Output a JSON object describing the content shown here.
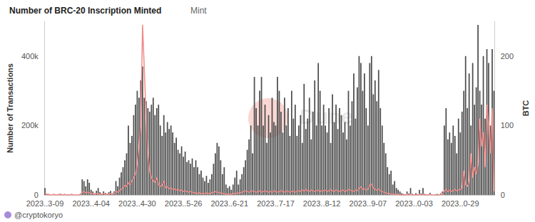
{
  "chart_data": {
    "type": "bar",
    "title": "Number of BRC-20 Inscription Minted",
    "subtitle": "Mint",
    "ylabel": "Number of Transactions",
    "y2label": "BTC",
    "annotations": [
      "@cryptokoryo",
      "Dune"
    ],
    "grid": false,
    "categories": [
      "2023..3-09",
      null,
      null,
      null,
      null,
      null,
      null,
      null,
      null,
      null,
      null,
      null,
      null,
      null,
      null,
      null,
      null,
      null,
      null,
      null,
      null,
      null,
      null,
      null,
      null,
      null,
      "2023..4-04",
      null,
      null,
      null,
      null,
      null,
      null,
      null,
      null,
      null,
      null,
      null,
      null,
      null,
      null,
      null,
      null,
      null,
      null,
      null,
      null,
      null,
      null,
      null,
      null,
      null,
      "2023..4-30",
      null,
      null,
      null,
      null,
      null,
      null,
      null,
      null,
      null,
      null,
      null,
      null,
      null,
      null,
      null,
      null,
      null,
      null,
      null,
      null,
      null,
      null,
      null,
      null,
      null,
      "2023..5-26",
      null,
      null,
      null,
      null,
      null,
      null,
      null,
      null,
      null,
      null,
      null,
      null,
      null,
      null,
      null,
      null,
      null,
      null,
      null,
      null,
      null,
      null,
      null,
      null,
      null,
      "2023..6-21",
      null,
      null,
      null,
      null,
      null,
      null,
      null,
      null,
      null,
      null,
      null,
      null,
      null,
      null,
      null,
      null,
      null,
      null,
      null,
      null,
      null,
      null,
      null,
      null,
      null,
      "2023..7-17",
      null,
      null,
      null,
      null,
      null,
      null,
      null,
      null,
      null,
      null,
      null,
      null,
      null,
      null,
      null,
      null,
      null,
      null,
      null,
      null,
      null,
      null,
      null,
      null,
      null,
      "2023..8-12",
      null,
      null,
      null,
      null,
      null,
      null,
      null,
      null,
      null,
      null,
      null,
      null,
      null,
      null,
      null,
      null,
      null,
      null,
      null,
      null,
      null,
      null,
      null,
      null,
      null,
      "2023..9-07",
      null,
      null,
      null,
      null,
      null,
      null,
      null,
      null,
      null,
      null,
      null,
      null,
      null,
      null,
      null,
      null,
      null,
      null,
      null,
      null,
      null,
      null,
      null,
      null,
      null,
      "2023..0-03",
      null,
      null,
      null,
      null,
      null,
      null,
      null,
      null,
      null,
      null,
      null,
      null,
      null,
      null,
      null,
      null,
      null,
      null,
      null,
      null,
      null,
      null,
      null,
      null,
      null,
      "2023..0-29",
      null,
      null,
      null,
      null,
      null,
      null,
      null,
      null,
      null,
      null,
      null,
      null,
      null,
      null,
      null,
      null,
      null,
      null,
      null
    ],
    "series": [
      {
        "type": "bar",
        "color": "#4d4d4d",
        "values": [
          20000,
          3000,
          1000,
          0,
          0,
          2000,
          0,
          1000,
          0,
          3000,
          0,
          1000,
          0,
          2000,
          0,
          0,
          0,
          1000,
          0,
          0,
          2000,
          45000,
          40000,
          25000,
          45000,
          35000,
          15000,
          10000,
          5000,
          12000,
          20000,
          8000,
          4000,
          10000,
          6000,
          3000,
          8000,
          12000,
          5000,
          10000,
          40000,
          25000,
          50000,
          65000,
          80000,
          100000,
          120000,
          200000,
          150000,
          170000,
          230000,
          260000,
          300000,
          280000,
          330000,
          370000,
          280000,
          270000,
          250000,
          240000,
          260000,
          280000,
          230000,
          250000,
          260000,
          200000,
          170000,
          230000,
          180000,
          210000,
          190000,
          200000,
          180000,
          150000,
          165000,
          130000,
          120000,
          140000,
          110000,
          125000,
          95000,
          100000,
          90000,
          105000,
          80000,
          100000,
          80000,
          60000,
          70000,
          50000,
          40000,
          55000,
          35000,
          45000,
          60000,
          90000,
          120000,
          150000,
          140000,
          100000,
          60000,
          80000,
          30000,
          20000,
          25000,
          15000,
          30000,
          50000,
          70000,
          30000,
          45000,
          60000,
          80000,
          100000,
          130000,
          160000,
          200000,
          120000,
          340000,
          250000,
          200000,
          300000,
          340000,
          200000,
          260000,
          150000,
          230000,
          180000,
          280000,
          210000,
          200000,
          340000,
          300000,
          240000,
          180000,
          280000,
          200000,
          250000,
          170000,
          300000,
          220000,
          260000,
          170000,
          200000,
          230000,
          150000,
          320000,
          190000,
          220000,
          280000,
          160000,
          240000,
          330000,
          200000,
          380000,
          300000,
          200000,
          260000,
          200000,
          180000,
          250000,
          150000,
          290000,
          210000,
          260000,
          190000,
          250000,
          230000,
          180000,
          210000,
          160000,
          300000,
          200000,
          270000,
          350000,
          220000,
          310000,
          400000,
          380000,
          300000,
          350000,
          250000,
          200000,
          380000,
          400000,
          290000,
          330000,
          270000,
          360000,
          250000,
          200000,
          150000,
          120000,
          80000,
          60000,
          70000,
          30000,
          40000,
          20000,
          15000,
          10000,
          5000,
          3000,
          2000,
          10000,
          4000,
          20000,
          3000,
          1000,
          5000,
          2000,
          15000,
          4000,
          20000,
          3000,
          1000,
          2000,
          6000,
          1000,
          0,
          2000,
          3000,
          1000,
          5000,
          10000,
          200000,
          250000,
          160000,
          180000,
          150000,
          200000,
          170000,
          120000,
          220000,
          180000,
          240000,
          300000,
          400000,
          250000,
          350000,
          200000,
          380000,
          260000,
          310000,
          490000,
          300000,
          260000,
          400000,
          220000,
          420000,
          380000,
          200000,
          420000,
          300000
        ]
      },
      {
        "type": "line",
        "axis": "y2",
        "color": "#ef8a87",
        "values": [
          2,
          1,
          1,
          0,
          0,
          1,
          0,
          0,
          1,
          0,
          0,
          1,
          0,
          0,
          0,
          1,
          0,
          0,
          0,
          0,
          1,
          4,
          5,
          3,
          4,
          3,
          2,
          2,
          1,
          2,
          2,
          1,
          1,
          2,
          1,
          1,
          1,
          2,
          1,
          2,
          5,
          4,
          6,
          8,
          10,
          14,
          12,
          18,
          15,
          20,
          25,
          30,
          45,
          70,
          100,
          245,
          180,
          110,
          60,
          35,
          25,
          20,
          18,
          25,
          15,
          12,
          14,
          20,
          10,
          12,
          9,
          10,
          8,
          9,
          7,
          8,
          6,
          7,
          5,
          6,
          5,
          4,
          5,
          4,
          3,
          3,
          2,
          3,
          2,
          2,
          2,
          3,
          2,
          2,
          3,
          4,
          5,
          4,
          3,
          3,
          2,
          2,
          1,
          1,
          1,
          1,
          2,
          2,
          2,
          3,
          3,
          4,
          5,
          6,
          5,
          4,
          5,
          6,
          5,
          4,
          5,
          6,
          4,
          5,
          6,
          5,
          4,
          5,
          4,
          6,
          5,
          4,
          5,
          6,
          5,
          4,
          6,
          5,
          4,
          5,
          6,
          4,
          5,
          6,
          5,
          7,
          6,
          8,
          6,
          5,
          7,
          6,
          5,
          6,
          7,
          5,
          6,
          6,
          7,
          5,
          6,
          8,
          6,
          5,
          7,
          6,
          5,
          6,
          7,
          5,
          6,
          8,
          7,
          6,
          5,
          7,
          6,
          10,
          12,
          8,
          9,
          7,
          8,
          14,
          16,
          10,
          8,
          7,
          9,
          6,
          5,
          4,
          3,
          2,
          2,
          1,
          1,
          1,
          1,
          1,
          0,
          0,
          0,
          0,
          1,
          0,
          1,
          0,
          0,
          0,
          0,
          1,
          0,
          1,
          0,
          0,
          0,
          1,
          0,
          0,
          0,
          0,
          0,
          1,
          1,
          6,
          8,
          5,
          7,
          5,
          6,
          8,
          6,
          7,
          8,
          10,
          35,
          15,
          12,
          20,
          60,
          25,
          40,
          30,
          45,
          110,
          70,
          90,
          40,
          130,
          100,
          60,
          125,
          5
        ]
      }
    ],
    "ylim": [
      0,
      500000
    ],
    "yticks": [
      0,
      {
        "value": 200000,
        "label": "200k"
      },
      {
        "value": 400000,
        "label": "400k"
      }
    ],
    "y2lim": [
      0,
      250
    ],
    "y2ticks": [
      0,
      100,
      200
    ]
  }
}
